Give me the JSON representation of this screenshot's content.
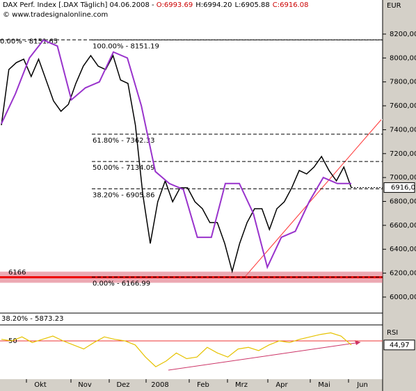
{
  "chart_data": {
    "type": "price",
    "header": {
      "symbol": "DAX Perf. Index [.DAX  Täglich] 04.06.2008 - ",
      "open": "O:6993.69",
      "high": "H:6994.20",
      "low": "L:6905.88",
      "close": "C:6916.08"
    },
    "copyright": "© www.tradesignalonline.com",
    "currency": "EUR",
    "ylim": [
      5866,
      8485
    ],
    "yticks": [
      {
        "value": 6000,
        "label": "6000,00"
      },
      {
        "value": 6200,
        "label": "6200,00"
      },
      {
        "value": 6400,
        "label": "6400,00"
      },
      {
        "value": 6600,
        "label": "6600,00"
      },
      {
        "value": 6800,
        "label": "6800,00"
      },
      {
        "value": 7000,
        "label": "7000,00"
      },
      {
        "value": 7200,
        "label": "7200,00"
      },
      {
        "value": 7400,
        "label": "7400,00"
      },
      {
        "value": 7600,
        "label": "7600,00"
      },
      {
        "value": 7800,
        "label": "7800,00"
      },
      {
        "value": 8000,
        "label": "8000,00"
      },
      {
        "value": 8200,
        "label": "8200,00"
      }
    ],
    "months": [
      "Okt",
      "Nov",
      "Dez",
      "2008",
      "Feb",
      "Mrz",
      "Apr",
      "Mai",
      "Jun"
    ],
    "series": [
      {
        "name": "DAX",
        "color": "#000000",
        "values": [
          7438,
          7903,
          7961,
          7990,
          7845,
          7990,
          7816,
          7641,
          7554,
          7612,
          7787,
          7932,
          8020,
          7932,
          7903,
          8020,
          7816,
          7787,
          7438,
          6856,
          6448,
          6797,
          6972,
          6797,
          6914,
          6914,
          6797,
          6739,
          6623,
          6623,
          6448,
          6215,
          6448,
          6623,
          6739,
          6739,
          6565,
          6739,
          6797,
          6914,
          7059,
          7030,
          7088,
          7176,
          7059,
          6972,
          7088,
          6914
        ]
      },
      {
        "name": "Band",
        "color": "#9933cc",
        "values": [
          7450,
          7700,
          8000,
          8150,
          8100,
          7650,
          7750,
          7800,
          8050,
          8000,
          7600,
          7050,
          6950,
          6900,
          6500,
          6500,
          6950,
          6950,
          6700,
          6250,
          6500,
          6550,
          6800,
          7000,
          6950,
          6950
        ]
      }
    ],
    "last_price": {
      "value": 6916.0,
      "label": "6916,0"
    },
    "fib_levels": [
      {
        "label": "100.00% - 8151.19",
        "value": 8151.19
      },
      {
        "label": "61.80% - 7362.33",
        "value": 7362.33
      },
      {
        "label": "50.00% - 7134.09",
        "value": 7134.09
      },
      {
        "label": "38.20% - 6905.86",
        "value": 6905.86
      },
      {
        "label": "0.00% - 6166.99",
        "value": 6166.99
      }
    ],
    "fib_left_top": {
      "label": "0.00% - 8151.65",
      "value": 8151.65
    },
    "fib_left_bottom": "38.20% - 5873.23",
    "support": {
      "label": "6166",
      "value": 6166
    },
    "rsi": {
      "title": "RSI",
      "ylim": [
        0,
        100
      ],
      "level": 50,
      "last": {
        "value": 44.97,
        "label": "44,97"
      },
      "color": "#e6c200",
      "values": [
        52,
        50,
        55,
        48,
        52,
        56,
        50,
        45,
        40,
        48,
        55,
        52,
        50,
        45,
        30,
        18,
        25,
        35,
        28,
        30,
        42,
        35,
        30,
        40,
        42,
        38,
        45,
        50,
        48,
        52,
        55,
        58,
        60,
        56,
        45
      ]
    }
  }
}
